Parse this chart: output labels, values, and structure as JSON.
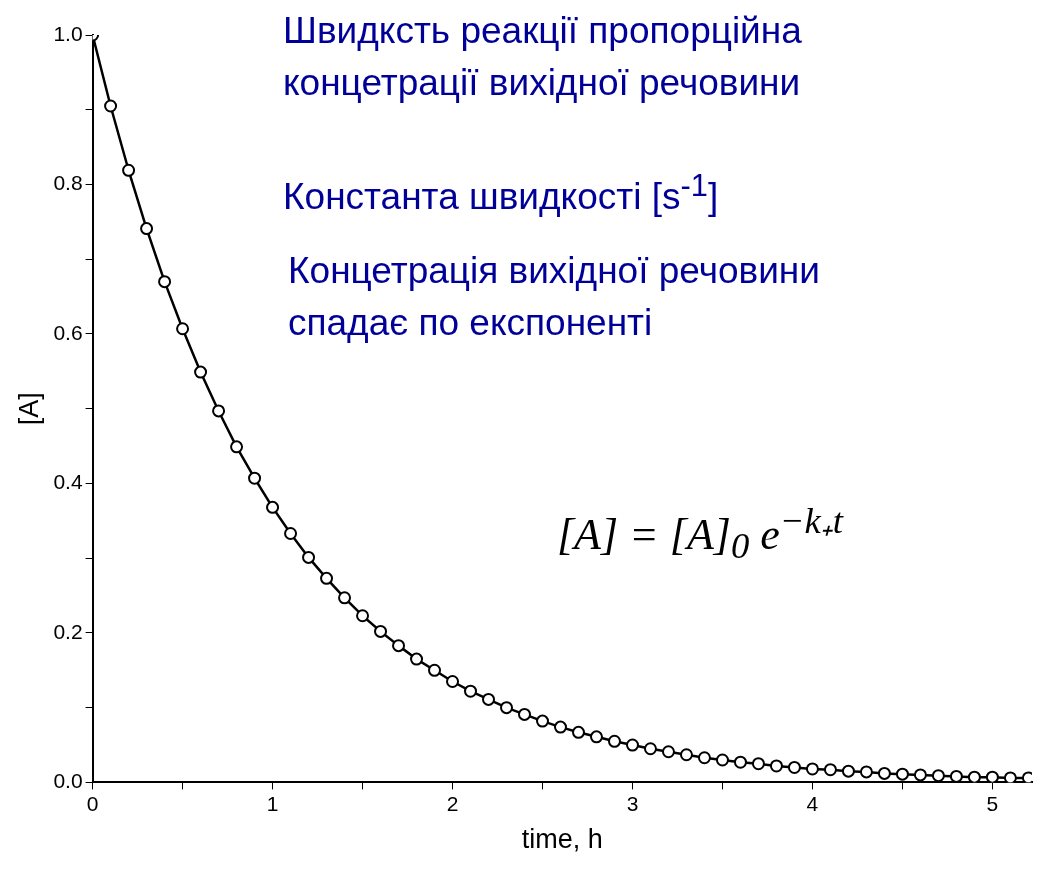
{
  "chart_data": {
    "type": "line",
    "xlabel": "time, h",
    "ylabel": "[A]",
    "x": [
      0,
      0.1,
      0.2,
      0.3,
      0.4,
      0.5,
      0.6,
      0.7,
      0.8,
      0.9,
      1,
      1.1,
      1.2,
      1.3,
      1.4,
      1.5,
      1.6,
      1.7,
      1.8,
      1.9,
      2,
      2.1,
      2.2,
      2.3,
      2.4,
      2.5,
      2.6,
      2.7,
      2.8,
      2.9,
      3,
      3.1,
      3.2,
      3.3,
      3.4,
      3.5,
      3.6,
      3.7,
      3.8,
      3.9,
      4,
      4.1,
      4.2,
      4.3,
      4.4,
      4.5,
      4.6,
      4.7,
      4.8,
      4.9,
      5,
      5.1,
      5.2
    ],
    "series": [
      {
        "color": "#000000",
        "values": [
          1,
          0.905,
          0.819,
          0.741,
          0.67,
          0.607,
          0.549,
          0.497,
          0.449,
          0.407,
          0.368,
          0.333,
          0.301,
          0.273,
          0.247,
          0.223,
          0.202,
          0.183,
          0.165,
          0.15,
          0.135,
          0.122,
          0.111,
          0.1,
          0.091,
          0.082,
          0.074,
          0.067,
          0.061,
          0.055,
          0.05,
          0.045,
          0.041,
          0.037,
          0.033,
          0.03,
          0.027,
          0.025,
          0.022,
          0.02,
          0.018,
          0.017,
          0.015,
          0.014,
          0.012,
          0.011,
          0.01,
          0.009,
          0.008,
          0.007,
          0.007,
          0.006,
          0.006
        ]
      }
    ],
    "xlim": [
      0,
      5.22
    ],
    "ylim": [
      0,
      1
    ],
    "xticks": [
      0,
      {
        "value": 0.5,
        "label": null
      },
      1,
      {
        "value": 1.5,
        "label": null
      },
      2,
      {
        "value": 2.5,
        "label": null
      },
      3,
      {
        "value": 3.5,
        "label": null
      },
      4,
      {
        "value": 4.5,
        "label": null
      },
      5
    ],
    "yticks": [
      {
        "value": 0,
        "label": "0.0"
      },
      {
        "value": 0.1,
        "label": null
      },
      {
        "value": 0.2,
        "label": "0.2"
      },
      {
        "value": 0.3,
        "label": null
      },
      {
        "value": 0.4,
        "label": "0.4"
      },
      {
        "value": 0.5,
        "label": null
      },
      {
        "value": 0.6,
        "label": "0.6"
      },
      {
        "value": 0.7,
        "label": null
      },
      {
        "value": 0.8,
        "label": "0.8"
      },
      {
        "value": 0.9,
        "label": null
      },
      {
        "value": 1,
        "label": "1.0"
      }
    ],
    "grid": false,
    "marker": "circle",
    "line_style": "solid",
    "annotations": [
      "Швидксть реакції пропорційна\nконцетрації вихідної речовини",
      "Константа швидкості [s$^{-1}$]",
      "Концетрація вихідної речовини\nспадає по експоненті",
      "[A] = [A]$_{0}$ e$^{−k₊t}$"
    ]
  }
}
